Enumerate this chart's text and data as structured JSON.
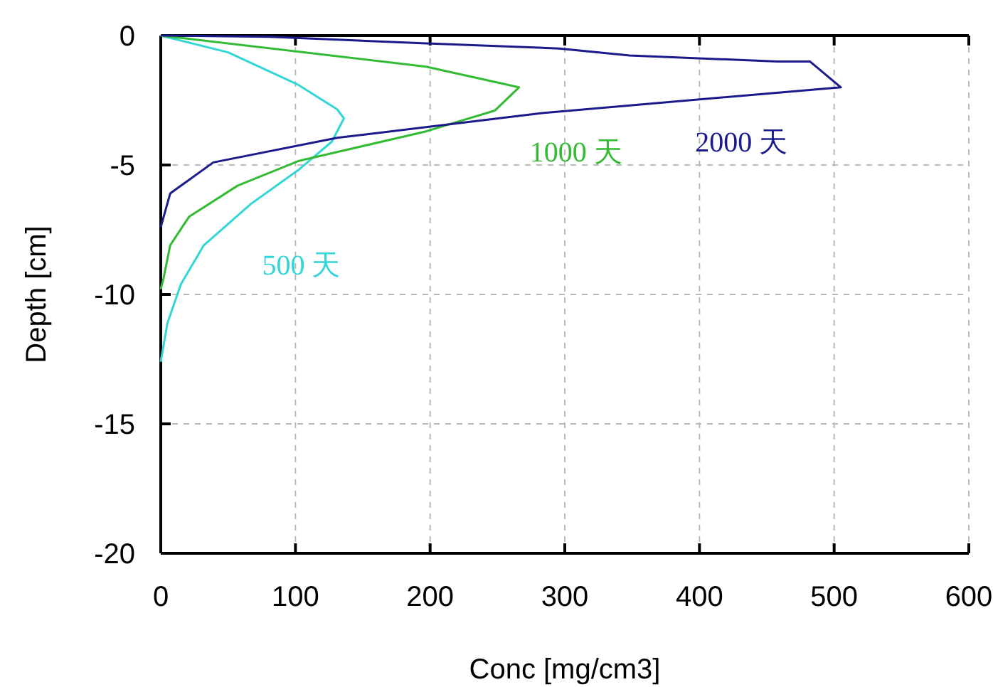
{
  "chart_data": {
    "type": "line",
    "xlabel": "Conc [mg/cm3]",
    "ylabel": "Depth [cm]",
    "xlim": [
      0,
      600
    ],
    "ylim": [
      -20,
      0
    ],
    "xticks": [
      0,
      100,
      200,
      300,
      400,
      500,
      600
    ],
    "yticks": [
      -20,
      -15,
      -10,
      -5,
      0
    ],
    "grid": true,
    "line_style": "solid",
    "marker": "none",
    "series": [
      {
        "name": "500 天",
        "color": "#33d6d6",
        "x": [
          0,
          50,
          102,
          131,
          136,
          127,
          102,
          67,
          32,
          15,
          5,
          0
        ],
        "values": [
          0,
          -0.65,
          -1.9,
          -2.85,
          -3.2,
          -4.1,
          -5.2,
          -6.5,
          -8.1,
          -9.6,
          -11.1,
          -12.6
        ]
      },
      {
        "name": "1000 天",
        "color": "#33bb33",
        "x": [
          0,
          197,
          266,
          248,
          197,
          102,
          57,
          21,
          7,
          2,
          0
        ],
        "values": [
          0,
          -1.2,
          -2.0,
          -2.9,
          -3.7,
          -4.85,
          -5.8,
          -7.0,
          -8.1,
          -9.4,
          -9.8
        ]
      },
      {
        "name": "2000 天",
        "color": "#1a1a8c",
        "x": [
          0,
          81,
          197,
          296,
          348,
          458,
          482,
          505,
          448,
          282,
          131,
          39,
          7,
          0
        ],
        "values": [
          0,
          -0.05,
          -0.3,
          -0.5,
          -0.77,
          -1.0,
          -1.0,
          -2.0,
          -2.25,
          -3.0,
          -3.95,
          -4.9,
          -6.1,
          -7.4
        ]
      }
    ]
  }
}
